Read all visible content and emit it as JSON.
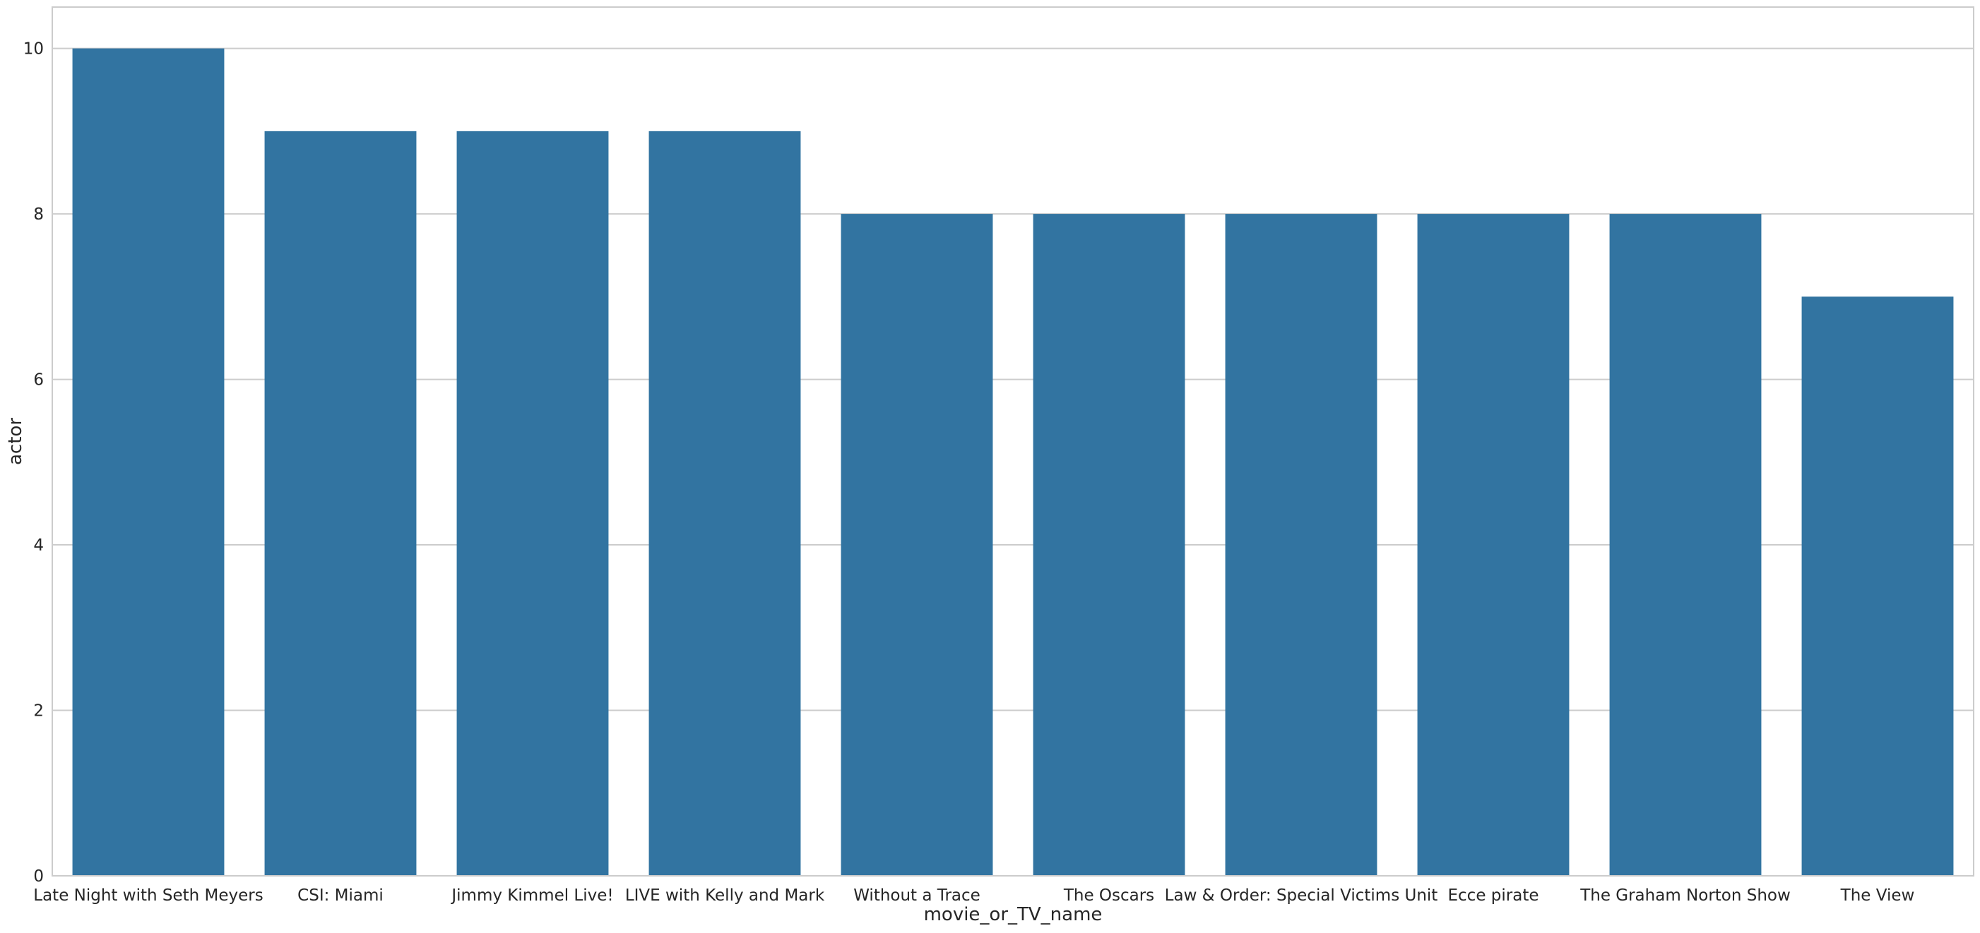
{
  "chart_data": {
    "type": "bar",
    "title": "",
    "xlabel": "movie_or_TV_name",
    "ylabel": "actor",
    "categories": [
      "Late Night with Seth Meyers",
      "CSI: Miami",
      "Jimmy Kimmel Live!",
      "LIVE with Kelly and Mark",
      "Without a Trace",
      "The Oscars",
      "Law & Order: Special Victims Unit",
      "Ecce pirate",
      "The Graham Norton Show",
      "The View"
    ],
    "values": [
      10,
      9,
      9,
      9,
      8,
      8,
      8,
      8,
      8,
      7
    ],
    "ylim": [
      0,
      10.5
    ],
    "yticks": [
      "0",
      "2",
      "4",
      "6",
      "8",
      "10"
    ],
    "grid": true,
    "bar_color": "#3274a1",
    "grid_color": "#cccccc",
    "frame_color": "#cccccc",
    "background": "#ffffff"
  }
}
